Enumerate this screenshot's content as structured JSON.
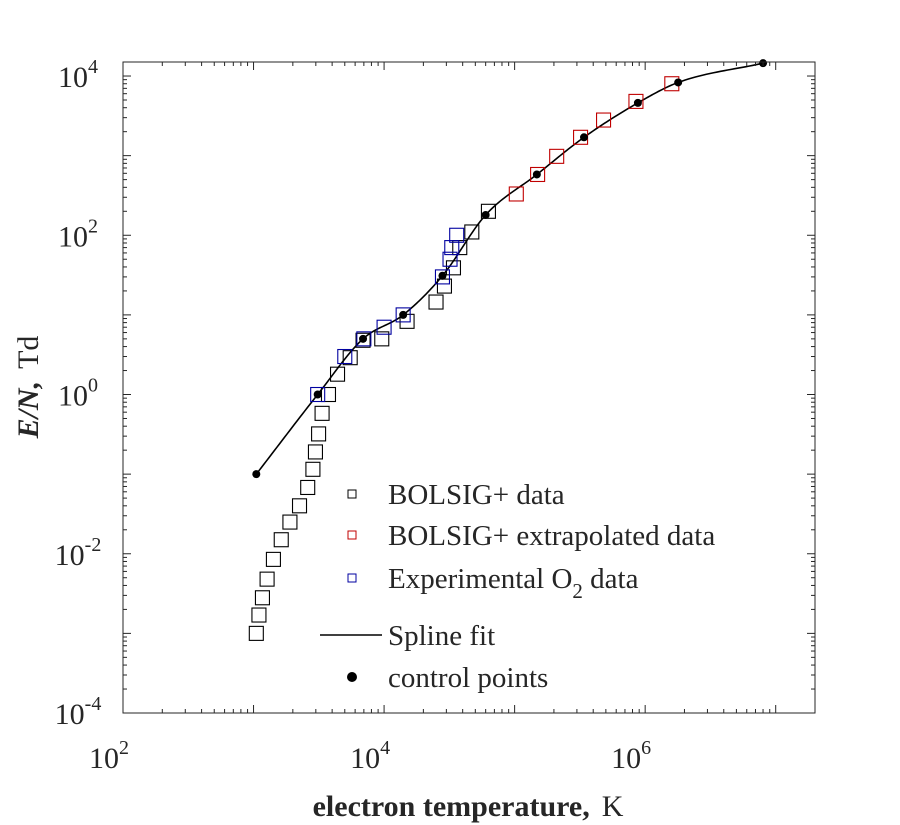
{
  "chart_data": {
    "type": "scatter",
    "xlabel": {
      "bold": "electron temperature,",
      "unit": "K"
    },
    "ylabel": {
      "bold": "E/N,",
      "unit": "Td"
    },
    "x_scale": "log",
    "y_scale": "log",
    "xlim": [
      100,
      20000000
    ],
    "ylim": [
      0.0001,
      15000
    ],
    "x_ticks": [
      {
        "base": "10",
        "exp": "2",
        "value": 100
      },
      {
        "base": "10",
        "exp": "4",
        "value": 10000
      },
      {
        "base": "10",
        "exp": "6",
        "value": 1000000
      }
    ],
    "y_ticks": [
      {
        "base": "10",
        "exp": "-4",
        "value": 0.0001
      },
      {
        "base": "10",
        "exp": "-2",
        "value": 0.01
      },
      {
        "base": "10",
        "exp": "0",
        "value": 1
      },
      {
        "base": "10",
        "exp": "2",
        "value": 100
      },
      {
        "base": "10",
        "exp": "4",
        "value": 10000
      }
    ],
    "grid": false,
    "legend_position": "bottom-right",
    "series": [
      {
        "name": "BOLSIG+ data",
        "marker": "open-square",
        "color": "#000000",
        "points": [
          [
            1050,
            0.001
          ],
          [
            1100,
            0.0017
          ],
          [
            1170,
            0.0028
          ],
          [
            1270,
            0.0048
          ],
          [
            1420,
            0.0085
          ],
          [
            1630,
            0.015
          ],
          [
            1900,
            0.025
          ],
          [
            2250,
            0.04
          ],
          [
            2600,
            0.068
          ],
          [
            2850,
            0.115
          ],
          [
            2980,
            0.19
          ],
          [
            3150,
            0.32
          ],
          [
            3350,
            0.58
          ],
          [
            3750,
            1.0
          ],
          [
            4400,
            1.8
          ],
          [
            5500,
            2.9
          ],
          [
            6900,
            4.8
          ],
          [
            9600,
            5.0
          ],
          [
            15000,
            8.3
          ],
          [
            25000,
            14.5
          ],
          [
            29000,
            23
          ],
          [
            34000,
            39
          ],
          [
            38000,
            70
          ],
          [
            47000,
            110
          ],
          [
            63000,
            200
          ]
        ]
      },
      {
        "name": "BOLSIG+ extrapolated data",
        "marker": "open-square",
        "color": "#c00000",
        "points": [
          [
            103000,
            330
          ],
          [
            150000,
            580
          ],
          [
            210000,
            980
          ],
          [
            320000,
            1700
          ],
          [
            480000,
            2800
          ],
          [
            850000,
            4800
          ],
          [
            1600000,
            8000
          ]
        ]
      },
      {
        "name": "Experimental O₂ data",
        "name_parts": {
          "before": "Experimental O",
          "sub": "2",
          "after": " data"
        },
        "marker": "open-square",
        "color": "#0000a0",
        "points": [
          [
            3100,
            1.0
          ],
          [
            5000,
            3.0
          ],
          [
            7000,
            5.0
          ],
          [
            10000,
            7.0
          ],
          [
            14000,
            10.0
          ],
          [
            28000,
            30
          ],
          [
            32000,
            50
          ],
          [
            33000,
            70
          ],
          [
            36000,
            100
          ]
        ]
      },
      {
        "name": "Spline fit",
        "marker": "line",
        "color": "#000000",
        "points": []
      },
      {
        "name": "control points",
        "marker": "filled-circle",
        "color": "#000000",
        "points": [
          [
            1050,
            0.1
          ],
          [
            3100,
            1.0
          ],
          [
            6900,
            5.0
          ],
          [
            14000,
            10.0
          ],
          [
            28000,
            31
          ],
          [
            60000,
            180
          ],
          [
            148000,
            580
          ],
          [
            340000,
            1700
          ],
          [
            880000,
            4600
          ],
          [
            1790000,
            8300
          ],
          [
            8000000,
            14500
          ]
        ]
      }
    ]
  }
}
